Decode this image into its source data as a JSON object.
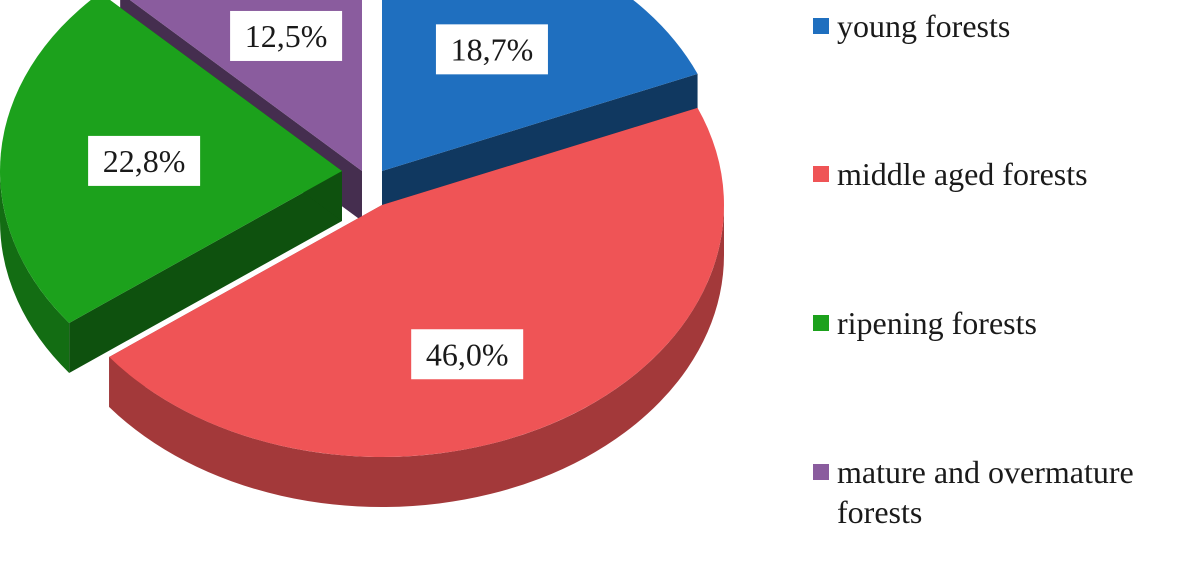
{
  "chart_data": {
    "type": "pie",
    "style": "3d-exploded",
    "legend_position": "right",
    "slices": [
      {
        "name": "young forests",
        "value": 18.7,
        "label": "18,7%",
        "color": "#1f6fbf"
      },
      {
        "name": "middle aged forests",
        "value": 46.0,
        "label": "46,0%",
        "color": "#ef5456"
      },
      {
        "name": "ripening forests",
        "value": 22.8,
        "label": "22,8%",
        "color": "#1ca11c"
      },
      {
        "name": "mature and overmature forests",
        "value": 12.5,
        "label": "12,5%",
        "color": "#8a5c9e"
      }
    ]
  }
}
